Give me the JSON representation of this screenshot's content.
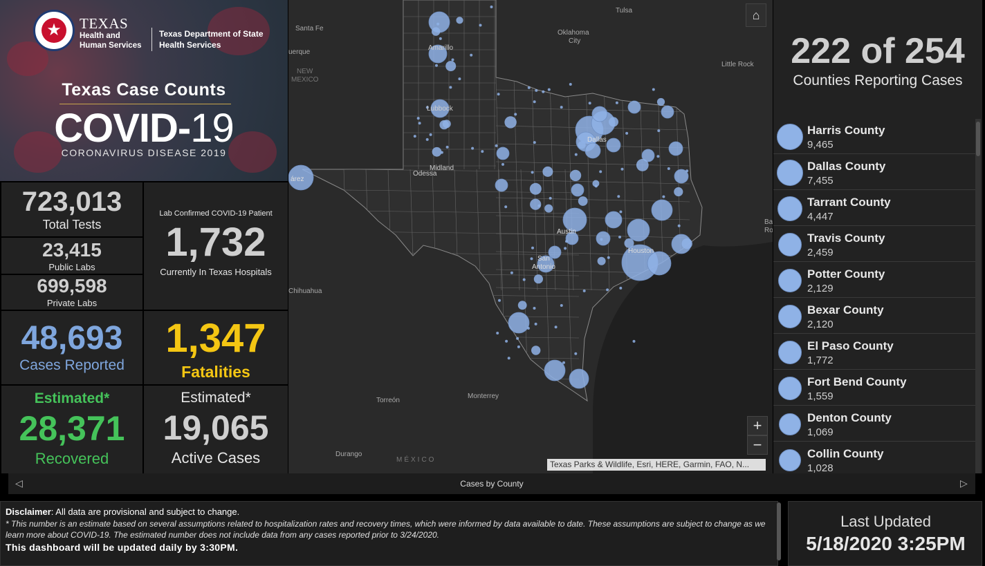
{
  "header": {
    "agency": "TEXAS",
    "agency_sub": "Health and Human Services",
    "dept": "Texas Department of State Health Services",
    "title": "Texas Case Counts",
    "covid_main": "COVID-",
    "covid_num": "19",
    "subtitle": "CORONAVIRUS DISEASE 2019"
  },
  "stats": {
    "total_tests": "723,013",
    "total_tests_label": "Total Tests",
    "public_labs": "23,415",
    "public_labs_label": "Public Labs",
    "private_labs": "699,598",
    "private_labs_label": "Private Labs",
    "hosp_caption": "Lab Confirmed COVID-19 Patient",
    "hospitalized": "1,732",
    "hosp_label": "Currently In Texas Hospitals",
    "cases": "48,693",
    "cases_label": "Cases Reported",
    "fatalities": "1,347",
    "fatalities_label": "Fatalities",
    "recovered_caption": "Estimated*",
    "recovered": "28,371",
    "recovered_label": "Recovered",
    "active_caption": "Estimated*",
    "active": "19,065",
    "active_label": "Active Cases"
  },
  "counties_summary": {
    "value": "222 of 254",
    "label": "Counties Reporting Cases"
  },
  "county_list": [
    {
      "name": "Harris County",
      "count": "9,465"
    },
    {
      "name": "Dallas County",
      "count": "7,455"
    },
    {
      "name": "Tarrant County",
      "count": "4,447"
    },
    {
      "name": "Travis County",
      "count": "2,459"
    },
    {
      "name": "Potter County",
      "count": "2,129"
    },
    {
      "name": "Bexar County",
      "count": "2,120"
    },
    {
      "name": "El Paso County",
      "count": "1,772"
    },
    {
      "name": "Fort Bend County",
      "count": "1,559"
    },
    {
      "name": "Denton County",
      "count": "1,069"
    },
    {
      "name": "Collin County",
      "count": "1,028"
    }
  ],
  "map": {
    "labels": {
      "santa_fe": "Santa Fe",
      "albuquerque": "uerque",
      "new_mexico": "NEW",
      "new_mexico2": "MEXICO",
      "tulsa": "Tulsa",
      "oklahoma_city": "Oklahoma",
      "oklahoma_city2": "City",
      "little_rock": "Little Rock",
      "amarillo": "Amarillo",
      "lubbock": "Lubbock",
      "midland": "Midland",
      "odessa": "Odessa",
      "juarez": "árez",
      "dallas": "Dallas",
      "austin": "Austin",
      "houston": "Houston",
      "san_antonio": "San",
      "san_antonio2": "Antonio",
      "chihuahua": "Chihuahua",
      "torreon": "Torreón",
      "monterrey": "Monterrey",
      "durango": "Durango",
      "mexico": "MÉXICO",
      "ba": "Ba",
      "ro": "Ro"
    },
    "home_icon": "home-icon",
    "zoom_in": "+",
    "zoom_out": "−",
    "attribution": "Texas Parks & Wildlife, Esri, HERE, Garmin, FAO, N...",
    "bubble_color": "#8fb2e6"
  },
  "tabbar": {
    "label": "Cases by County",
    "prev": "◁",
    "next": "▷"
  },
  "disclaimer": {
    "line1_bold": "Disclaimer",
    "line1": ": All data are provisional and subject to change.",
    "note": "* This number is an estimate based on several assumptions related to hospitalization rates and recovery times, which were informed by data available to date. These assumptions are subject to change as we learn more about COVID-19. The estimated number does not include data from any cases reported prior to 3/24/2020.",
    "update_note": "This dashboard will be updated daily by 3:30PM."
  },
  "updated": {
    "label": "Last Updated",
    "value": "5/18/2020 3:25PM"
  }
}
